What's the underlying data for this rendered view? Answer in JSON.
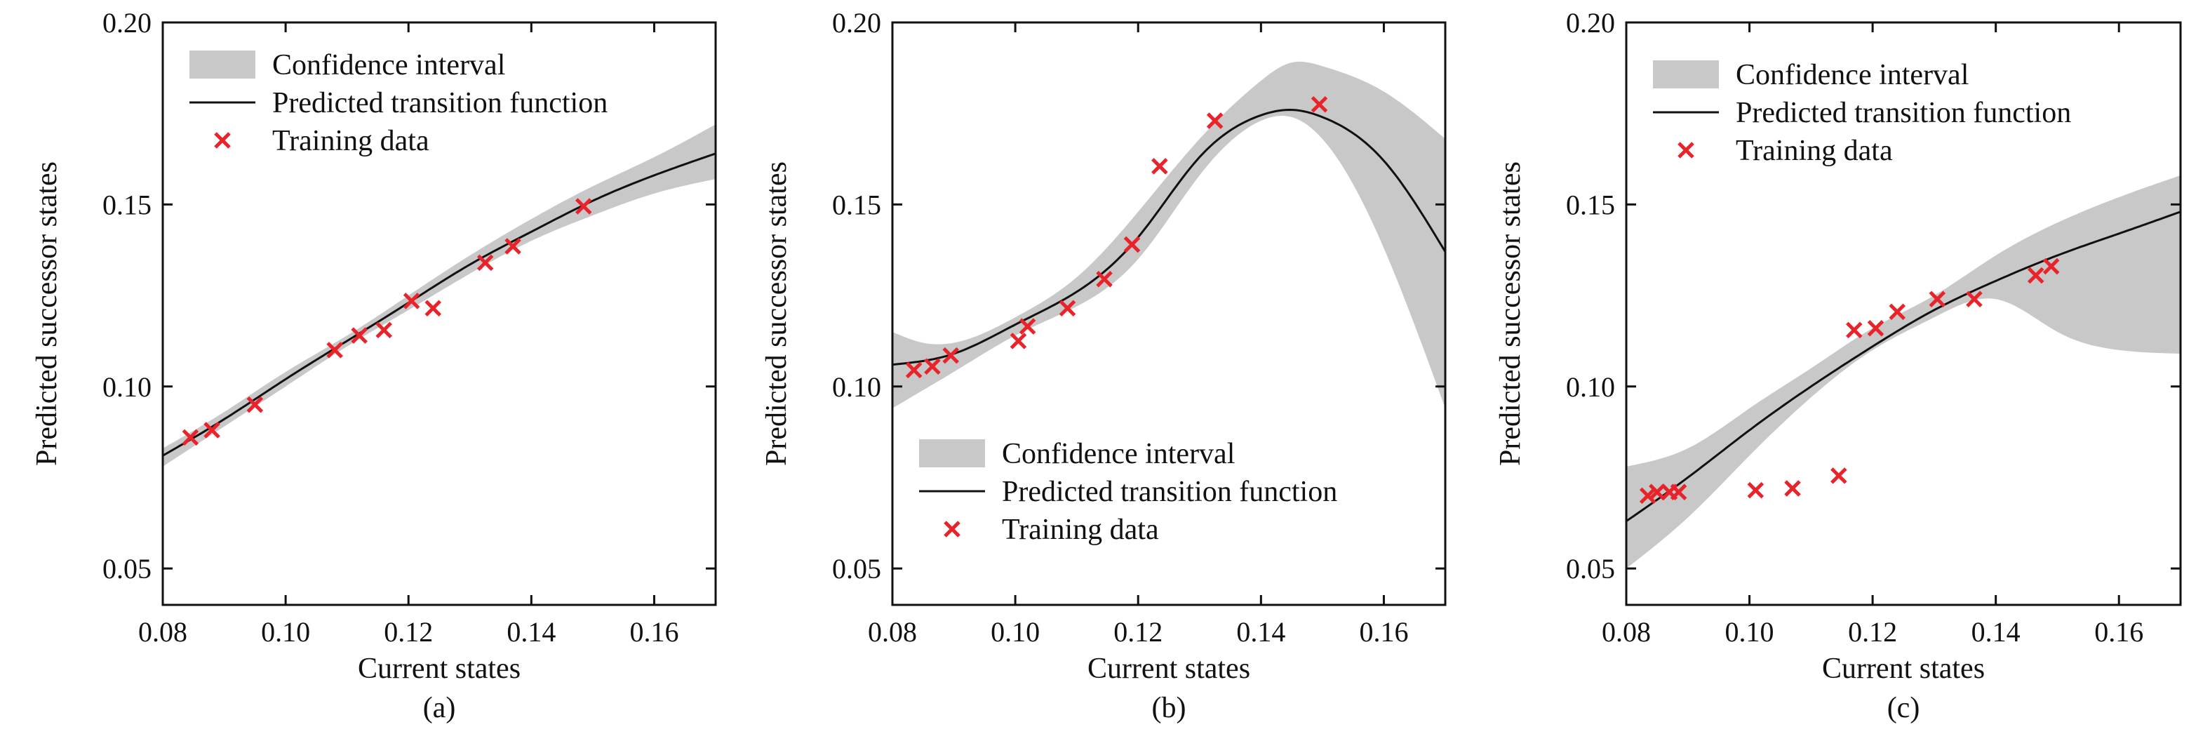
{
  "colors": {
    "confidence_fill": "#c8c8c8",
    "prediction_line": "#111111",
    "training_marker": "#e8232a",
    "axis": "#111111"
  },
  "legend_labels": {
    "ci": "Confidence interval",
    "pred": "Predicted transition function",
    "train": "Training data"
  },
  "chart_data": [
    {
      "type": "line",
      "panel": "(a)",
      "xlabel": "Current states",
      "ylabel": "Predicted successor states",
      "xlim": [
        0.08,
        0.17
      ],
      "ylim": [
        0.04,
        0.2
      ],
      "xticks": [
        0.08,
        0.1,
        0.12,
        0.14,
        0.16
      ],
      "xtick_labels": [
        "0.08",
        "0.10",
        "0.12",
        "0.14",
        "0.16"
      ],
      "yticks": [
        0.05,
        0.1,
        0.15,
        0.2
      ],
      "ytick_labels": [
        "0.05",
        "0.10",
        "0.15",
        "0.20"
      ],
      "legend_position": "top-left",
      "grid": false,
      "series": [
        {
          "name": "Confidence interval",
          "kind": "band",
          "x": [
            0.08,
            0.09,
            0.1,
            0.11,
            0.12,
            0.13,
            0.14,
            0.15,
            0.16,
            0.17
          ],
          "lower": [
            0.078,
            0.089,
            0.1,
            0.111,
            0.121,
            0.131,
            0.14,
            0.147,
            0.153,
            0.157
          ],
          "upper": [
            0.083,
            0.093,
            0.104,
            0.114,
            0.125,
            0.136,
            0.146,
            0.155,
            0.163,
            0.172
          ]
        },
        {
          "name": "Predicted transition function",
          "kind": "line",
          "x": [
            0.08,
            0.09,
            0.1,
            0.11,
            0.12,
            0.13,
            0.14,
            0.15,
            0.16,
            0.17
          ],
          "y": [
            0.081,
            0.091,
            0.102,
            0.1125,
            0.123,
            0.1335,
            0.1425,
            0.151,
            0.158,
            0.164
          ]
        },
        {
          "name": "Training data",
          "kind": "scatter",
          "x": [
            0.0845,
            0.088,
            0.095,
            0.108,
            0.112,
            0.116,
            0.1205,
            0.124,
            0.1325,
            0.137,
            0.1485
          ],
          "y": [
            0.086,
            0.088,
            0.095,
            0.11,
            0.114,
            0.1155,
            0.1235,
            0.1215,
            0.134,
            0.1385,
            0.1495
          ]
        }
      ]
    },
    {
      "type": "line",
      "panel": "(b)",
      "xlabel": "Current states",
      "ylabel": "Predicted successor states",
      "xlim": [
        0.08,
        0.17
      ],
      "ylim": [
        0.04,
        0.2
      ],
      "xticks": [
        0.08,
        0.1,
        0.12,
        0.14,
        0.16
      ],
      "xtick_labels": [
        "0.08",
        "0.10",
        "0.12",
        "0.14",
        "0.16"
      ],
      "yticks": [
        0.05,
        0.1,
        0.15,
        0.2
      ],
      "ytick_labels": [
        "0.05",
        "0.10",
        "0.15",
        "0.20"
      ],
      "legend_position": "bottom-left",
      "grid": false,
      "series": [
        {
          "name": "Confidence interval",
          "kind": "band",
          "x": [
            0.08,
            0.085,
            0.09,
            0.1,
            0.11,
            0.12,
            0.13,
            0.14,
            0.145,
            0.15,
            0.16,
            0.17
          ],
          "lower": [
            0.094,
            0.099,
            0.104,
            0.114,
            0.122,
            0.135,
            0.158,
            0.173,
            0.174,
            0.168,
            0.138,
            0.094
          ],
          "upper": [
            0.115,
            0.112,
            0.112,
            0.119,
            0.13,
            0.148,
            0.168,
            0.184,
            0.189,
            0.188,
            0.181,
            0.168
          ]
        },
        {
          "name": "Predicted transition function",
          "kind": "line",
          "x": [
            0.08,
            0.085,
            0.09,
            0.1,
            0.11,
            0.12,
            0.13,
            0.14,
            0.145,
            0.15,
            0.16,
            0.17
          ],
          "y": [
            0.106,
            0.107,
            0.109,
            0.117,
            0.126,
            0.141,
            0.163,
            0.1745,
            0.176,
            0.174,
            0.162,
            0.137
          ]
        },
        {
          "name": "Training data",
          "kind": "scatter",
          "x": [
            0.0835,
            0.0865,
            0.0895,
            0.1005,
            0.102,
            0.1085,
            0.1145,
            0.119,
            0.1235,
            0.1325,
            0.1495
          ],
          "y": [
            0.1045,
            0.1055,
            0.1085,
            0.1125,
            0.1165,
            0.1215,
            0.1295,
            0.139,
            0.1605,
            0.173,
            0.1775
          ]
        }
      ]
    },
    {
      "type": "line",
      "panel": "(c)",
      "xlabel": "Current states",
      "ylabel": "Predicted successor states",
      "xlim": [
        0.08,
        0.17
      ],
      "ylim": [
        0.04,
        0.2
      ],
      "xticks": [
        0.08,
        0.1,
        0.12,
        0.14,
        0.16
      ],
      "xtick_labels": [
        "0.08",
        "0.10",
        "0.12",
        "0.14",
        "0.16"
      ],
      "yticks": [
        0.05,
        0.1,
        0.15,
        0.2
      ],
      "ytick_labels": [
        "0.05",
        "0.10",
        "0.15",
        "0.20"
      ],
      "legend_position": "top-left",
      "grid": false,
      "series": [
        {
          "name": "Confidence interval",
          "kind": "band",
          "x": [
            0.08,
            0.09,
            0.1,
            0.11,
            0.12,
            0.13,
            0.14,
            0.15,
            0.16,
            0.17
          ],
          "lower": [
            0.05,
            0.064,
            0.081,
            0.097,
            0.11,
            0.119,
            0.124,
            0.115,
            0.11,
            0.109
          ],
          "upper": [
            0.078,
            0.083,
            0.094,
            0.105,
            0.116,
            0.125,
            0.136,
            0.145,
            0.152,
            0.158
          ]
        },
        {
          "name": "Predicted transition function",
          "kind": "line",
          "x": [
            0.08,
            0.09,
            0.1,
            0.11,
            0.12,
            0.13,
            0.14,
            0.15,
            0.16,
            0.17
          ],
          "y": [
            0.063,
            0.075,
            0.088,
            0.1,
            0.111,
            0.121,
            0.129,
            0.136,
            0.142,
            0.148
          ]
        },
        {
          "name": "Training data",
          "kind": "scatter",
          "x": [
            0.0835,
            0.085,
            0.087,
            0.0885,
            0.101,
            0.107,
            0.1145,
            0.117,
            0.1205,
            0.124,
            0.1305,
            0.1365,
            0.1465,
            0.149
          ],
          "y": [
            0.07,
            0.071,
            0.071,
            0.071,
            0.0715,
            0.072,
            0.0755,
            0.1155,
            0.116,
            0.1205,
            0.124,
            0.124,
            0.1305,
            0.133
          ]
        }
      ]
    }
  ]
}
